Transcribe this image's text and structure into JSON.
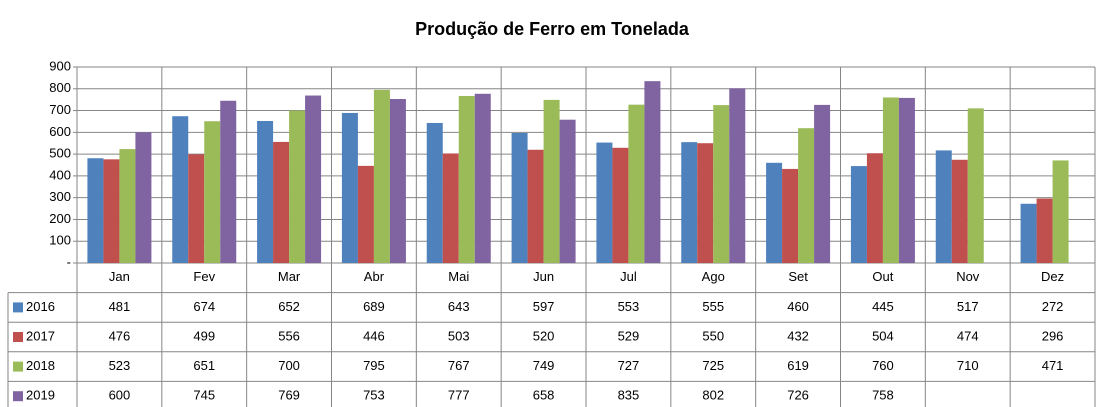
{
  "chart_data": {
    "type": "bar",
    "title": "Produção de Ferro em Tonelada",
    "categories": [
      "Jan",
      "Fev",
      "Mar",
      "Abr",
      "Mai",
      "Jun",
      "Jul",
      "Ago",
      "Set",
      "Out",
      "Nov",
      "Dez"
    ],
    "series": [
      {
        "name": "2016",
        "color": "#4f81bd",
        "values": [
          481,
          674,
          652,
          689,
          643,
          597,
          553,
          555,
          460,
          445,
          517,
          272
        ]
      },
      {
        "name": "2017",
        "color": "#c0504d",
        "values": [
          476,
          499,
          556,
          446,
          503,
          520,
          529,
          550,
          432,
          504,
          474,
          296
        ]
      },
      {
        "name": "2018",
        "color": "#9bbb59",
        "values": [
          523,
          651,
          700,
          795,
          767,
          749,
          727,
          725,
          619,
          760,
          710,
          471
        ]
      },
      {
        "name": "2019",
        "color": "#8064a2",
        "values": [
          600,
          745,
          769,
          753,
          777,
          658,
          835,
          802,
          726,
          758,
          null,
          null
        ]
      }
    ],
    "ylim": [
      0,
      900
    ],
    "yticks": [
      {
        "value": 0,
        "label": "-"
      },
      100,
      200,
      300,
      400,
      500,
      600,
      700,
      800,
      900
    ],
    "grid": true
  }
}
